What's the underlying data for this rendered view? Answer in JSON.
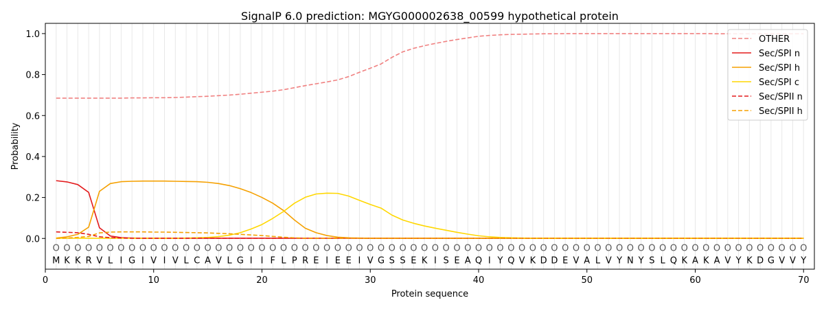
{
  "chart_data": {
    "type": "line",
    "title": "SignalP 6.0 prediction: MGYG000002638_00599 hypothetical protein",
    "xlabel": "Protein sequence",
    "ylabel": "Probability",
    "xlim": [
      0,
      71
    ],
    "ylim": [
      -0.15,
      1.05
    ],
    "xticks": [
      0,
      10,
      20,
      30,
      40,
      50,
      60,
      70
    ],
    "yticks": [
      0.0,
      0.2,
      0.4,
      0.6,
      0.8,
      1.0
    ],
    "ytick_labels": [
      "0.0",
      "0.2",
      "0.4",
      "0.6",
      "0.8",
      "1.0"
    ],
    "grid": "vertical lines at each residue",
    "legend_position": "top-right",
    "position_marker": "O",
    "sequence": [
      "M",
      "K",
      "K",
      "R",
      "V",
      "L",
      "I",
      "G",
      "I",
      "V",
      "I",
      "V",
      "L",
      "C",
      "A",
      "V",
      "L",
      "G",
      "I",
      "I",
      "F",
      "L",
      "P",
      "R",
      "E",
      "I",
      "E",
      "E",
      "I",
      "V",
      "G",
      "S",
      "S",
      "E",
      "K",
      "I",
      "S",
      "E",
      "A",
      "Q",
      "I",
      "Y",
      "Q",
      "V",
      "K",
      "D",
      "D",
      "E",
      "V",
      "A",
      "L",
      "V",
      "Y",
      "N",
      "Y",
      "S",
      "L",
      "Q",
      "K",
      "A",
      "K",
      "A",
      "V",
      "Y",
      "K",
      "D",
      "G",
      "V",
      "V",
      "Y"
    ],
    "series": [
      {
        "name": "OTHER",
        "color": "#f08080",
        "dash": "dashed",
        "values": [
          0.685,
          0.685,
          0.685,
          0.685,
          0.685,
          0.685,
          0.685,
          0.686,
          0.686,
          0.687,
          0.687,
          0.688,
          0.69,
          0.692,
          0.694,
          0.697,
          0.7,
          0.704,
          0.709,
          0.714,
          0.719,
          0.726,
          0.736,
          0.746,
          0.755,
          0.764,
          0.774,
          0.79,
          0.811,
          0.831,
          0.852,
          0.884,
          0.911,
          0.928,
          0.941,
          0.952,
          0.962,
          0.971,
          0.979,
          0.987,
          0.991,
          0.994,
          0.996,
          0.997,
          0.998,
          0.999,
          0.999,
          1.0,
          1.0,
          1.0,
          1.0,
          1.0,
          1.0,
          1.0,
          1.0,
          1.0,
          1.0,
          1.0,
          1.0,
          1.0,
          1.0,
          0.999,
          0.999,
          0.999,
          0.999,
          0.999,
          0.999,
          0.999,
          0.999,
          0.999
        ]
      },
      {
        "name": "Sec/SPI n",
        "color": "#e31a1c",
        "dash": "solid",
        "values": [
          0.282,
          0.276,
          0.263,
          0.225,
          0.052,
          0.012,
          0.004,
          0.002,
          0.001,
          0.001,
          0.001,
          0.001,
          0.001,
          0.001,
          0.001,
          0.001,
          0.001,
          0.001,
          0.001,
          0.001,
          0.001,
          0.001,
          0.001,
          0.001,
          0.001,
          0.001,
          0.001,
          0.001,
          0.001,
          0.001,
          0.001,
          0.001,
          0.001,
          0.001,
          0.001,
          0.001,
          0.001,
          0.001,
          0.001,
          0.001,
          0.001,
          0.001,
          0.001,
          0.001,
          0.001,
          0.001,
          0.001,
          0.001,
          0.001,
          0.001,
          0.001,
          0.001,
          0.001,
          0.001,
          0.001,
          0.001,
          0.001,
          0.001,
          0.001,
          0.001,
          0.001,
          0.001,
          0.001,
          0.001,
          0.001,
          0.001,
          0.001,
          0.001,
          0.001,
          0.001
        ]
      },
      {
        "name": "Sec/SPI h",
        "color": "#f5a000",
        "dash": "solid",
        "values": [
          0.002,
          0.008,
          0.02,
          0.055,
          0.23,
          0.268,
          0.277,
          0.279,
          0.28,
          0.28,
          0.28,
          0.279,
          0.278,
          0.277,
          0.274,
          0.268,
          0.258,
          0.243,
          0.224,
          0.2,
          0.172,
          0.136,
          0.09,
          0.05,
          0.028,
          0.014,
          0.006,
          0.003,
          0.002,
          0.001,
          0.001,
          0.001,
          0.001,
          0.001,
          0.001,
          0.001,
          0.001,
          0.001,
          0.001,
          0.001,
          0.001,
          0.001,
          0.001,
          0.001,
          0.001,
          0.001,
          0.001,
          0.001,
          0.001,
          0.001,
          0.001,
          0.001,
          0.001,
          0.001,
          0.001,
          0.001,
          0.001,
          0.001,
          0.001,
          0.001,
          0.001,
          0.001,
          0.001,
          0.001,
          0.001,
          0.001,
          0.001,
          0.001,
          0.001,
          0.001
        ]
      },
      {
        "name": "Sec/SPI c",
        "color": "#ffd700",
        "dash": "solid",
        "values": [
          0.001,
          0.001,
          0.001,
          0.001,
          0.001,
          0.001,
          0.001,
          0.001,
          0.001,
          0.001,
          0.001,
          0.001,
          0.002,
          0.003,
          0.005,
          0.009,
          0.016,
          0.028,
          0.046,
          0.068,
          0.098,
          0.132,
          0.172,
          0.201,
          0.217,
          0.221,
          0.22,
          0.207,
          0.186,
          0.166,
          0.148,
          0.114,
          0.09,
          0.074,
          0.061,
          0.05,
          0.04,
          0.03,
          0.021,
          0.013,
          0.008,
          0.005,
          0.003,
          0.002,
          0.001,
          0.001,
          0.001,
          0.001,
          0.001,
          0.001,
          0.001,
          0.001,
          0.001,
          0.001,
          0.001,
          0.001,
          0.001,
          0.001,
          0.001,
          0.001,
          0.001,
          0.001,
          0.001,
          0.001,
          0.001,
          0.001,
          0.001,
          0.001,
          0.001,
          0.001
        ]
      },
      {
        "name": "Sec/SPII n",
        "color": "#e31a1c",
        "dash": "dashed",
        "values": [
          0.032,
          0.03,
          0.028,
          0.02,
          0.008,
          0.004,
          0.002,
          0.001,
          0.001,
          0.001,
          0.001,
          0.001,
          0.001,
          0.001,
          0.001,
          0.001,
          0.001,
          0.001,
          0.001,
          0.001,
          0.001,
          0.001,
          0.001,
          0.001,
          0.001,
          0.001,
          0.001,
          0.001,
          0.001,
          0.001,
          0.001,
          0.001,
          0.001,
          0.001,
          0.001,
          0.001,
          0.001,
          0.001,
          0.001,
          0.001,
          0.001,
          0.001,
          0.001,
          0.001,
          0.001,
          0.001,
          0.001,
          0.001,
          0.001,
          0.001,
          0.001,
          0.001,
          0.001,
          0.001,
          0.001,
          0.001,
          0.001,
          0.001,
          0.001,
          0.001,
          0.001,
          0.001,
          0.001,
          0.001,
          0.001,
          0.001,
          0.001,
          0.001,
          0.001,
          0.001
        ]
      },
      {
        "name": "Sec/SPII h",
        "color": "#f5a000",
        "dash": "dashed",
        "values": [
          0.0,
          0.002,
          0.005,
          0.01,
          0.027,
          0.031,
          0.032,
          0.032,
          0.032,
          0.031,
          0.031,
          0.03,
          0.029,
          0.028,
          0.027,
          0.025,
          0.023,
          0.02,
          0.017,
          0.014,
          0.01,
          0.006,
          0.003,
          0.001,
          0.001,
          0.001,
          0.001,
          0.001,
          0.001,
          0.001,
          0.001,
          0.001,
          0.001,
          0.001,
          0.001,
          0.001,
          0.001,
          0.001,
          0.001,
          0.001,
          0.001,
          0.001,
          0.001,
          0.001,
          0.001,
          0.001,
          0.001,
          0.001,
          0.001,
          0.001,
          0.001,
          0.001,
          0.001,
          0.001,
          0.001,
          0.001,
          0.001,
          0.001,
          0.001,
          0.001,
          0.001,
          0.001,
          0.001,
          0.001,
          0.001,
          0.001,
          0.001,
          0.001,
          0.001,
          0.001
        ]
      }
    ]
  }
}
